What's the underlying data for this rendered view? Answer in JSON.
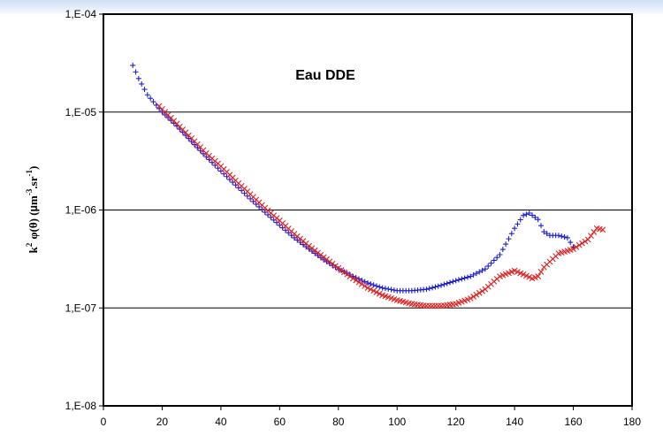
{
  "chart_data": {
    "type": "scatter",
    "title": "Eau DDE",
    "xlabel": "",
    "ylabel": "k2 φ(θ) (µm-3.sr-1)",
    "ylabel_parts": {
      "k": "k",
      "exp2": "2",
      "phi": "φ(θ) (",
      "mu": "µ",
      "m": "m",
      "exp_m3": "-3",
      "sr": ".sr",
      "exp_m1": "-1",
      "close": ")"
    },
    "x_scale": "linear",
    "y_scale": "log",
    "xlim": [
      0,
      180
    ],
    "ylim": [
      1e-08,
      0.0001
    ],
    "x_ticks": [
      0,
      20,
      40,
      60,
      80,
      100,
      120,
      140,
      160,
      180
    ],
    "y_ticks": [
      1e-08,
      1e-07,
      1e-06,
      1e-05,
      0.0001
    ],
    "y_tick_labels": [
      "1,E-08",
      "1,E-07",
      "1,E-06",
      "1,E-05",
      "1,E-04"
    ],
    "grid": "horizontal major lines",
    "legend": "none",
    "series": [
      {
        "marker": "+",
        "color": "#1f1fd0",
        "knots": [
          [
            10,
            3e-05
          ],
          [
            12,
            2.2e-05
          ],
          [
            15,
            1.5e-05
          ],
          [
            20,
            1e-05
          ],
          [
            25,
            7.2e-06
          ],
          [
            30,
            5e-06
          ],
          [
            35,
            3.5e-06
          ],
          [
            40,
            2.5e-06
          ],
          [
            45,
            1.8e-06
          ],
          [
            50,
            1.3e-06
          ],
          [
            55,
            9.5e-07
          ],
          [
            60,
            7e-07
          ],
          [
            65,
            5.2e-07
          ],
          [
            70,
            4e-07
          ],
          [
            75,
            3.1e-07
          ],
          [
            80,
            2.5e-07
          ],
          [
            85,
            2.1e-07
          ],
          [
            90,
            1.8e-07
          ],
          [
            95,
            1.6e-07
          ],
          [
            100,
            1.5e-07
          ],
          [
            105,
            1.5e-07
          ],
          [
            110,
            1.55e-07
          ],
          [
            115,
            1.7e-07
          ],
          [
            120,
            1.9e-07
          ],
          [
            125,
            2.1e-07
          ],
          [
            130,
            2.5e-07
          ],
          [
            135,
            3.5e-07
          ],
          [
            140,
            6.5e-07
          ],
          [
            143,
            8.8e-07
          ],
          [
            145,
            9.3e-07
          ],
          [
            148,
            8e-07
          ],
          [
            150,
            6e-07
          ],
          [
            152,
            5.5e-07
          ],
          [
            155,
            5.5e-07
          ],
          [
            158,
            5.2e-07
          ],
          [
            160,
            4.2e-07
          ]
        ]
      },
      {
        "marker": "x",
        "color": "#e02020",
        "knots": [
          [
            19,
            1.15e-05
          ],
          [
            25,
            7.6e-06
          ],
          [
            30,
            5.4e-06
          ],
          [
            35,
            3.8e-06
          ],
          [
            40,
            2.8e-06
          ],
          [
            45,
            2e-06
          ],
          [
            50,
            1.45e-06
          ],
          [
            55,
            1.05e-06
          ],
          [
            60,
            7.8e-07
          ],
          [
            65,
            5.7e-07
          ],
          [
            70,
            4.3e-07
          ],
          [
            75,
            3.3e-07
          ],
          [
            80,
            2.55e-07
          ],
          [
            85,
            2e-07
          ],
          [
            90,
            1.6e-07
          ],
          [
            95,
            1.35e-07
          ],
          [
            100,
            1.2e-07
          ],
          [
            105,
            1.1e-07
          ],
          [
            110,
            1.05e-07
          ],
          [
            115,
            1.05e-07
          ],
          [
            120,
            1.1e-07
          ],
          [
            125,
            1.25e-07
          ],
          [
            130,
            1.55e-07
          ],
          [
            135,
            2.1e-07
          ],
          [
            140,
            2.4e-07
          ],
          [
            143,
            2.2e-07
          ],
          [
            146,
            2e-07
          ],
          [
            148,
            2.1e-07
          ],
          [
            150,
            2.6e-07
          ],
          [
            155,
            3.6e-07
          ],
          [
            160,
            4e-07
          ],
          [
            165,
            5e-07
          ],
          [
            168,
            6.5e-07
          ],
          [
            170,
            6.3e-07
          ]
        ]
      }
    ]
  }
}
